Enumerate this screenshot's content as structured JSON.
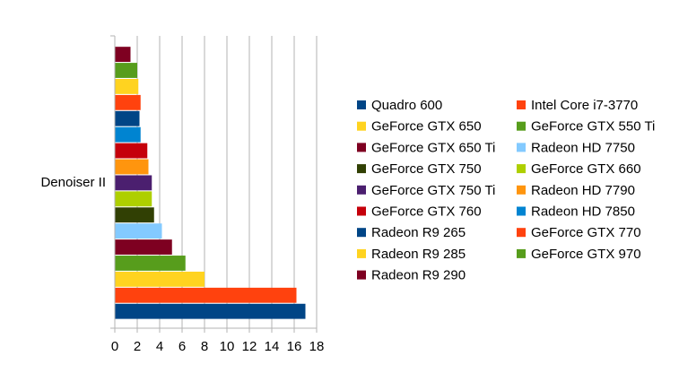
{
  "chart_data": {
    "type": "bar",
    "orientation": "horizontal",
    "categories": [
      "Denoiser II"
    ],
    "series": [
      {
        "name": "Quadro 600",
        "values": [
          17.0
        ],
        "color": "#004586"
      },
      {
        "name": "Intel Core i7-3770",
        "values": [
          16.2
        ],
        "color": "#ff420e"
      },
      {
        "name": "GeForce GTX 650",
        "values": [
          8.0
        ],
        "color": "#ffd320"
      },
      {
        "name": "GeForce GTX 550 Ti",
        "values": [
          6.3
        ],
        "color": "#579d1c"
      },
      {
        "name": "GeForce GTX 650 Ti",
        "values": [
          5.1
        ],
        "color": "#7e0021"
      },
      {
        "name": "Radeon HD 7750",
        "values": [
          4.2
        ],
        "color": "#83caff"
      },
      {
        "name": "GeForce GTX 750",
        "values": [
          3.5
        ],
        "color": "#314004"
      },
      {
        "name": "GeForce GTX 660",
        "values": [
          3.3
        ],
        "color": "#aecf00"
      },
      {
        "name": "GeForce GTX 750 Ti",
        "values": [
          3.3
        ],
        "color": "#4b1f6f"
      },
      {
        "name": "Radeon HD 7790",
        "values": [
          3.0
        ],
        "color": "#ff950e"
      },
      {
        "name": "GeForce GTX 760",
        "values": [
          2.9
        ],
        "color": "#c5000b"
      },
      {
        "name": "Radeon HD 7850",
        "values": [
          2.3
        ],
        "color": "#0084d1"
      },
      {
        "name": "Radeon R9 265",
        "values": [
          2.2
        ],
        "color": "#004586"
      },
      {
        "name": "GeForce GTX 770",
        "values": [
          2.3
        ],
        "color": "#ff420e"
      },
      {
        "name": "Radeon R9 285",
        "values": [
          2.1
        ],
        "color": "#ffd320"
      },
      {
        "name": "GeForce GTX 970",
        "values": [
          2.0
        ],
        "color": "#579d1c"
      },
      {
        "name": "Radeon R9 290",
        "values": [
          1.4
        ],
        "color": "#7e0021"
      }
    ],
    "xlim": [
      0,
      18
    ],
    "xticks": [
      "0",
      "2",
      "4",
      "6",
      "8",
      "10",
      "12",
      "14",
      "16",
      "18"
    ],
    "grid": "vertical",
    "legend_position": "right",
    "legend_columns": 2
  }
}
